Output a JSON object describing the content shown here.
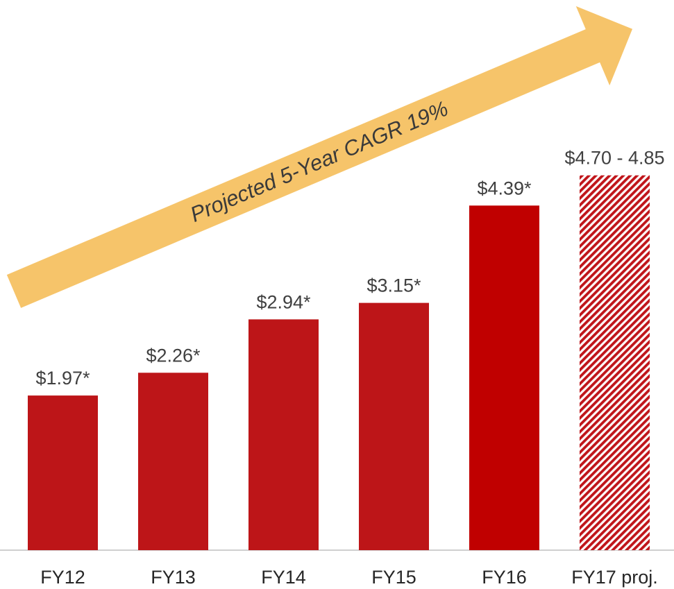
{
  "chart_data": {
    "type": "bar",
    "annotation": "Projected 5-Year CAGR 19%",
    "categories": [
      "FY12",
      "FY13",
      "FY14",
      "FY15",
      "FY16",
      "FY17 proj."
    ],
    "values": [
      1.97,
      2.26,
      2.94,
      3.15,
      4.39,
      4.775
    ],
    "value_labels": [
      "$1.97*",
      "$2.26*",
      "$2.94*",
      "$3.15*",
      "$4.39*",
      "$4.70 - 4.85"
    ],
    "colors": [
      "#bd1518",
      "#bd1518",
      "#bd1518",
      "#bd1518",
      "#c00000",
      "#c0151a"
    ],
    "hatched": [
      false,
      false,
      false,
      false,
      false,
      true
    ],
    "ylim": [
      0,
      7
    ]
  }
}
